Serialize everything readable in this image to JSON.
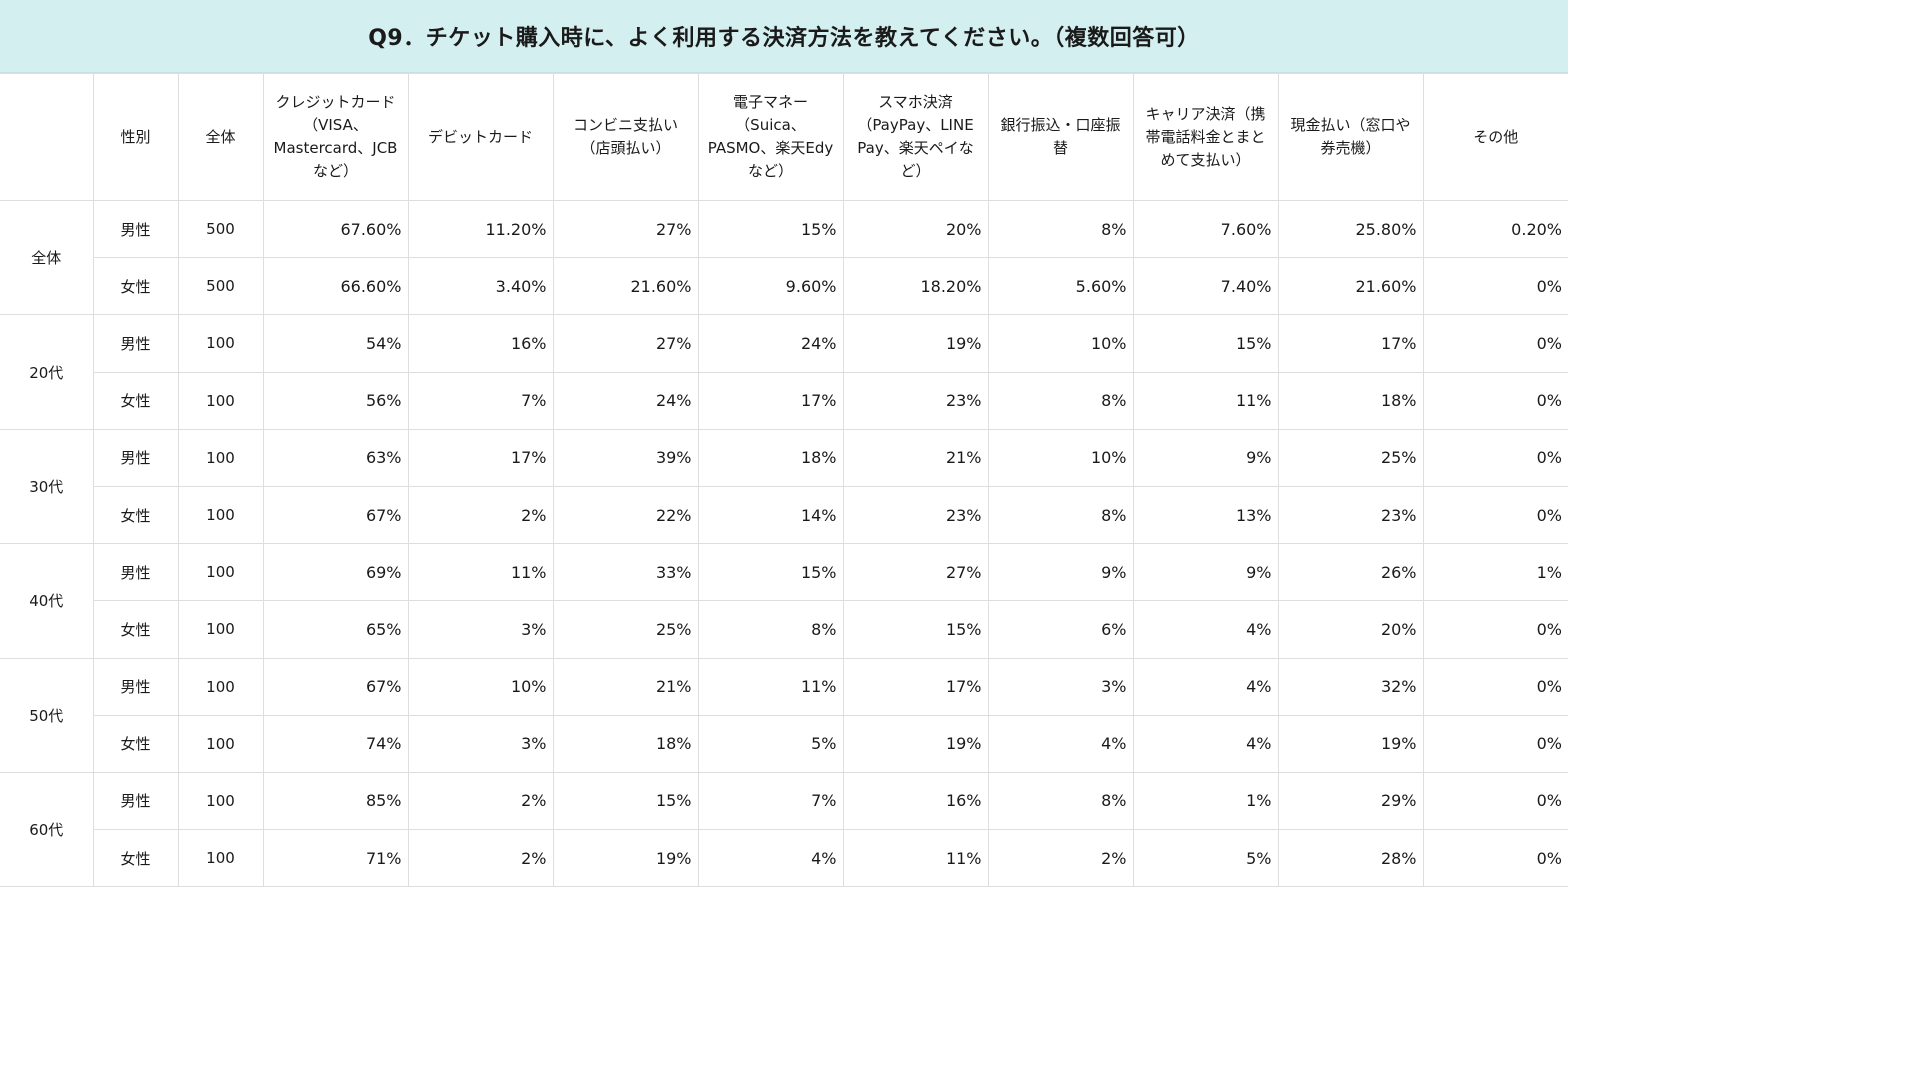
{
  "title": "Q9．チケット購入時に、よく利用する決済方法を教えてください。（複数回答可）",
  "chart_data": {
    "type": "table",
    "columns": [
      "",
      "性別",
      "全体",
      "クレジットカード（VISA、Mastercard、JCBなど）",
      "デビットカード",
      "コンビニ支払い（店頭払い）",
      "電子マネー（Suica、PASMO、楽天Edyなど）",
      "スマホ決済（PayPay、LINE Pay、楽天ペイなど）",
      "銀行振込・口座振替",
      "キャリア決済（携帯電話料金とまとめて支払い）",
      "現金払い（窓口や券売機）",
      "その他"
    ],
    "groups": [
      {
        "label": "全体",
        "rows": [
          {
            "gender": "男性",
            "n": "500",
            "values": [
              "67.60%",
              "11.20%",
              "27%",
              "15%",
              "20%",
              "8%",
              "7.60%",
              "25.80%",
              "0.20%"
            ]
          },
          {
            "gender": "女性",
            "n": "500",
            "values": [
              "66.60%",
              "3.40%",
              "21.60%",
              "9.60%",
              "18.20%",
              "5.60%",
              "7.40%",
              "21.60%",
              "0%"
            ]
          }
        ]
      },
      {
        "label": "20代",
        "rows": [
          {
            "gender": "男性",
            "n": "100",
            "values": [
              "54%",
              "16%",
              "27%",
              "24%",
              "19%",
              "10%",
              "15%",
              "17%",
              "0%"
            ]
          },
          {
            "gender": "女性",
            "n": "100",
            "values": [
              "56%",
              "7%",
              "24%",
              "17%",
              "23%",
              "8%",
              "11%",
              "18%",
              "0%"
            ]
          }
        ]
      },
      {
        "label": "30代",
        "rows": [
          {
            "gender": "男性",
            "n": "100",
            "values": [
              "63%",
              "17%",
              "39%",
              "18%",
              "21%",
              "10%",
              "9%",
              "25%",
              "0%"
            ]
          },
          {
            "gender": "女性",
            "n": "100",
            "values": [
              "67%",
              "2%",
              "22%",
              "14%",
              "23%",
              "8%",
              "13%",
              "23%",
              "0%"
            ]
          }
        ]
      },
      {
        "label": "40代",
        "rows": [
          {
            "gender": "男性",
            "n": "100",
            "values": [
              "69%",
              "11%",
              "33%",
              "15%",
              "27%",
              "9%",
              "9%",
              "26%",
              "1%"
            ]
          },
          {
            "gender": "女性",
            "n": "100",
            "values": [
              "65%",
              "3%",
              "25%",
              "8%",
              "15%",
              "6%",
              "4%",
              "20%",
              "0%"
            ]
          }
        ]
      },
      {
        "label": "50代",
        "rows": [
          {
            "gender": "男性",
            "n": "100",
            "values": [
              "67%",
              "10%",
              "21%",
              "11%",
              "17%",
              "3%",
              "4%",
              "32%",
              "0%"
            ]
          },
          {
            "gender": "女性",
            "n": "100",
            "values": [
              "74%",
              "3%",
              "18%",
              "5%",
              "19%",
              "4%",
              "4%",
              "19%",
              "0%"
            ]
          }
        ]
      },
      {
        "label": "60代",
        "rows": [
          {
            "gender": "男性",
            "n": "100",
            "values": [
              "85%",
              "2%",
              "15%",
              "7%",
              "16%",
              "8%",
              "1%",
              "29%",
              "0%"
            ]
          },
          {
            "gender": "女性",
            "n": "100",
            "values": [
              "71%",
              "2%",
              "19%",
              "4%",
              "11%",
              "2%",
              "5%",
              "28%",
              "0%"
            ]
          }
        ]
      }
    ]
  }
}
